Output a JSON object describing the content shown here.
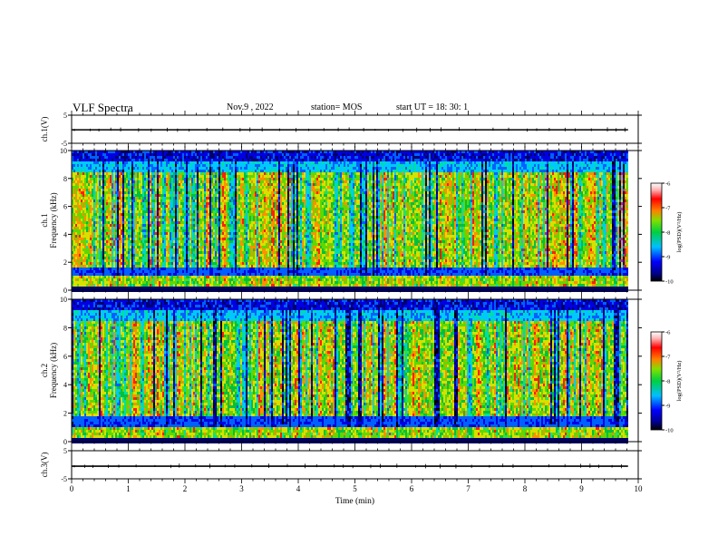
{
  "header": {
    "title": "VLF Spectra",
    "date": "Nov.9 , 2022",
    "station": "station= MOS",
    "start_ut": "start UT = 18: 30: 1"
  },
  "chart_data": [
    {
      "type": "line",
      "ylabel": "ch.1(V)",
      "xlim": [
        0,
        10
      ],
      "ylim": [
        -5,
        5
      ],
      "yticks": [
        "5",
        "-5"
      ],
      "series": [
        {
          "values_const": -0.2
        }
      ]
    },
    {
      "type": "heatmap",
      "ylabel_lines": [
        "ch.1",
        "Frequency (kHz)"
      ],
      "xlim": [
        0,
        10
      ],
      "ylim": [
        0,
        10
      ],
      "yticks": [
        "0",
        "2",
        "4",
        "6",
        "8",
        "10"
      ],
      "data_end_min": 9.82,
      "colorbar": {
        "label": "log(PSD)(V²/Hz)",
        "range": [
          -10,
          -6
        ],
        "ticks": [
          "-6",
          "-7",
          "-8",
          "-9",
          "-10"
        ]
      }
    },
    {
      "type": "heatmap",
      "ylabel_lines": [
        "ch.2",
        "Frequency (kHz)"
      ],
      "xlim": [
        0,
        10
      ],
      "ylim": [
        0,
        10
      ],
      "yticks": [
        "0",
        "2",
        "4",
        "6",
        "8",
        "10"
      ],
      "data_end_min": 9.82,
      "colorbar": {
        "label": "log(PSD)(V²/Hz)",
        "range": [
          -10,
          -6
        ],
        "ticks": [
          "-6",
          "-7",
          "-8",
          "-9",
          "-10"
        ]
      }
    },
    {
      "type": "line",
      "ylabel": "ch.3(V)",
      "xlim": [
        0,
        10
      ],
      "ylim": [
        -5,
        5
      ],
      "yticks": [
        "5",
        "-5"
      ],
      "series": [
        {
          "values_const": -0.5
        }
      ]
    }
  ],
  "xaxis": {
    "label": "Time (min)",
    "ticks": [
      "0",
      "1",
      "2",
      "3",
      "4",
      "5",
      "6",
      "7",
      "8",
      "9",
      "10"
    ]
  },
  "colors": {
    "cmap": [
      "#00008c",
      "#0000ff",
      "#0080ff",
      "#00e0e0",
      "#00c850",
      "#40e000",
      "#e0e000",
      "#ff8000",
      "#ff0000",
      "#ffffff"
    ]
  }
}
